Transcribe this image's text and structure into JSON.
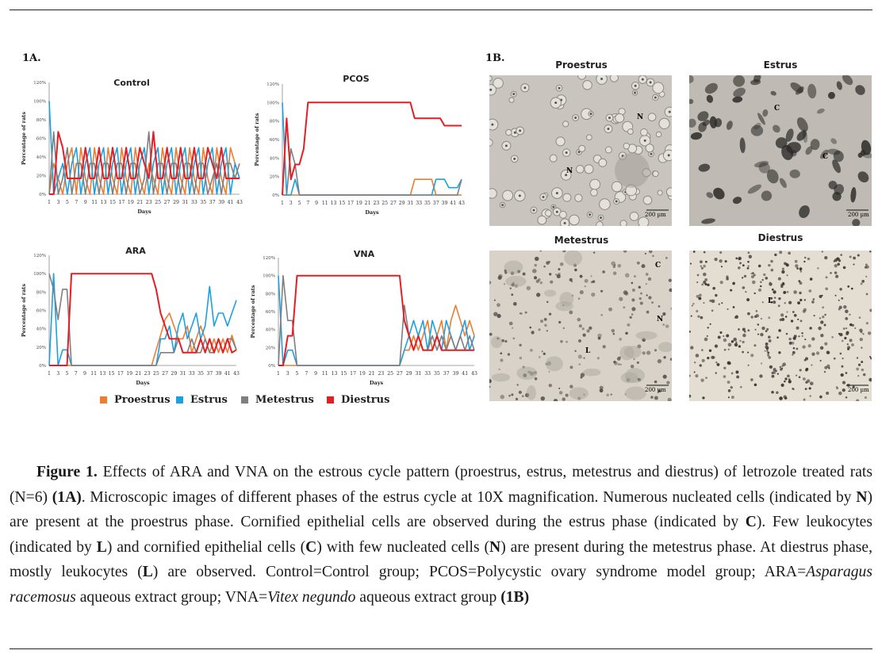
{
  "figure": {
    "panel_a_label": "1A.",
    "panel_b_label": "1B.",
    "caption": {
      "figure_label": "Figure 1.",
      "s1": " Effects of ARA and VNA on the estrous cycle pattern (proestrus, estrus, metestrus and diestrus) of letrozole treated rats (N=6) ",
      "ref_1a": "(1A)",
      "s2": ". Microscopic images of different phases of the estrus cycle at 10X magnification. Numerous nucleated cells (indicated by ",
      "n1": "N",
      "s3": ") are present at the proestrus phase. Cornified epithelial cells are observed during the estrus phase (indicated by ",
      "c1": "C",
      "s4": "). Few leukocytes (indicated by ",
      "l1": "L",
      "s5": ") and cornified epithelial cells (",
      "c2": "C",
      "s6": ") with few nucleated cells (",
      "n2": "N",
      "s7": ") are present during the metestrus phase. At diestrus phase, mostly leukocytes (",
      "l2": "L",
      "s8": ") are observed. Control=Control group; PCOS=Polycystic ovary syndrome model group; ARA=",
      "ara_species": "Asparagus racemosus",
      "s9": " aqueous extract group; VNA=",
      "vna_species": "Vitex negundo",
      "s10": " aqueous extract group ",
      "ref_1b": "(1B)"
    }
  },
  "legend": [
    {
      "name": "Proestrus",
      "color": "#ED7D31"
    },
    {
      "name": "Estrus",
      "color": "#1BA1E2"
    },
    {
      "name": "Metestrus",
      "color": "#7F7F7F"
    },
    {
      "name": "Diestrus",
      "color": "#E31E24"
    }
  ],
  "chart_data": [
    {
      "type": "line",
      "title": "Control",
      "xlabel": "Days",
      "ylabel": "Percentage of rats",
      "x_tick_labels": [
        "1",
        "3",
        "5",
        "7",
        "9",
        "11",
        "13",
        "15",
        "17",
        "19",
        "21",
        "23",
        "25",
        "27",
        "29",
        "31",
        "33",
        "35",
        "37",
        "39",
        "41",
        "43"
      ],
      "y_tick_labels": [
        "0%",
        "20%",
        "40%",
        "60%",
        "80%",
        "100%",
        "120%"
      ],
      "ylim": [
        0,
        120
      ],
      "days": [
        1,
        2,
        3,
        4,
        5,
        6,
        7,
        8,
        9,
        10,
        11,
        12,
        13,
        14,
        15,
        16,
        17,
        18,
        19,
        20,
        21,
        22,
        23,
        24,
        25,
        26,
        27,
        28,
        29,
        30,
        31,
        32,
        33,
        34,
        35,
        36,
        37,
        38,
        39,
        40,
        41,
        42,
        43
      ],
      "series": [
        {
          "name": "Proestrus",
          "values": [
            0,
            33,
            17,
            0,
            33,
            50,
            0,
            50,
            17,
            0,
            50,
            17,
            0,
            50,
            17,
            0,
            50,
            17,
            0,
            50,
            17,
            0,
            33,
            17,
            0,
            50,
            17,
            0,
            50,
            17,
            0,
            50,
            17,
            0,
            50,
            17,
            0,
            50,
            17,
            0,
            50,
            33,
            17
          ]
        },
        {
          "name": "Estrus",
          "values": [
            100,
            0,
            17,
            33,
            0,
            33,
            50,
            0,
            33,
            50,
            0,
            33,
            50,
            0,
            33,
            50,
            0,
            33,
            50,
            0,
            33,
            50,
            0,
            33,
            50,
            0,
            33,
            50,
            0,
            33,
            50,
            0,
            33,
            50,
            0,
            33,
            50,
            0,
            33,
            50,
            0,
            33,
            17
          ]
        },
        {
          "name": "Metestrus",
          "values": [
            0,
            67,
            0,
            17,
            50,
            0,
            33,
            33,
            0,
            33,
            33,
            0,
            33,
            33,
            0,
            33,
            33,
            0,
            33,
            33,
            0,
            17,
            67,
            0,
            33,
            33,
            0,
            33,
            33,
            0,
            33,
            33,
            0,
            33,
            33,
            0,
            17,
            33,
            0,
            33,
            33,
            17,
            33
          ]
        },
        {
          "name": "Diestrus",
          "values": [
            0,
            0,
            67,
            50,
            17,
            17,
            17,
            17,
            50,
            17,
            17,
            50,
            17,
            17,
            50,
            17,
            17,
            50,
            17,
            17,
            50,
            33,
            17,
            67,
            17,
            17,
            50,
            17,
            17,
            50,
            17,
            17,
            50,
            17,
            17,
            50,
            33,
            17,
            50,
            17,
            17,
            17,
            17
          ]
        }
      ]
    },
    {
      "type": "line",
      "title": "PCOS",
      "xlabel": "Days",
      "ylabel": "Percentage of rats",
      "x_tick_labels": [
        "1",
        "3",
        "5",
        "7",
        "9",
        "11",
        "13",
        "15",
        "17",
        "19",
        "21",
        "23",
        "25",
        "27",
        "29",
        "31",
        "33",
        "35",
        "37",
        "39",
        "41",
        "43"
      ],
      "y_tick_labels": [
        "0%",
        "20%",
        "40%",
        "60%",
        "80%",
        "100%",
        "120%"
      ],
      "ylim": [
        0,
        120
      ],
      "days": [
        1,
        2,
        3,
        4,
        5,
        6,
        7,
        8,
        9,
        10,
        11,
        12,
        13,
        14,
        15,
        16,
        17,
        18,
        19,
        20,
        21,
        22,
        23,
        24,
        25,
        26,
        27,
        28,
        29,
        30,
        31,
        32,
        33,
        34,
        35,
        36,
        37,
        38,
        39,
        40,
        41,
        42,
        43
      ],
      "series": [
        {
          "name": "Proestrus",
          "values": [
            0,
            0,
            0,
            0,
            0,
            0,
            0,
            0,
            0,
            0,
            0,
            0,
            0,
            0,
            0,
            0,
            0,
            0,
            0,
            0,
            0,
            0,
            0,
            0,
            0,
            0,
            0,
            0,
            0,
            0,
            0,
            17,
            17,
            17,
            17,
            17,
            0,
            0,
            0,
            0,
            0,
            0,
            0
          ]
        },
        {
          "name": "Estrus",
          "values": [
            100,
            0,
            0,
            17,
            0,
            0,
            0,
            0,
            0,
            0,
            0,
            0,
            0,
            0,
            0,
            0,
            0,
            0,
            0,
            0,
            0,
            0,
            0,
            0,
            0,
            0,
            0,
            0,
            0,
            0,
            0,
            0,
            0,
            0,
            0,
            0,
            17,
            17,
            17,
            8,
            8,
            8,
            17
          ]
        },
        {
          "name": "Metestrus",
          "values": [
            0,
            0,
            50,
            33,
            0,
            0,
            0,
            0,
            0,
            0,
            0,
            0,
            0,
            0,
            0,
            0,
            0,
            0,
            0,
            0,
            0,
            0,
            0,
            0,
            0,
            0,
            0,
            0,
            0,
            0,
            0,
            0,
            0,
            0,
            0,
            0,
            0,
            0,
            0,
            0,
            0,
            0,
            17
          ]
        },
        {
          "name": "Diestrus",
          "values": [
            0,
            83,
            17,
            33,
            33,
            50,
            100,
            100,
            100,
            100,
            100,
            100,
            100,
            100,
            100,
            100,
            100,
            100,
            100,
            100,
            100,
            100,
            100,
            100,
            100,
            100,
            100,
            100,
            100,
            100,
            100,
            83,
            83,
            83,
            83,
            83,
            83,
            83,
            75,
            75,
            75,
            75,
            75
          ]
        }
      ]
    },
    {
      "type": "line",
      "title": "ARA",
      "xlabel": "Days",
      "ylabel": "Percentage of rats",
      "x_tick_labels": [
        "1",
        "3",
        "5",
        "7",
        "9",
        "11",
        "13",
        "15",
        "17",
        "19",
        "21",
        "23",
        "25",
        "27",
        "29",
        "31",
        "33",
        "35",
        "37",
        "39",
        "41",
        "43"
      ],
      "y_tick_labels": [
        "0%",
        "20%",
        "40%",
        "60%",
        "80%",
        "100%",
        "120%"
      ],
      "ylim": [
        0,
        120
      ],
      "days": [
        1,
        2,
        3,
        4,
        5,
        6,
        7,
        8,
        9,
        10,
        11,
        12,
        13,
        14,
        15,
        16,
        17,
        18,
        19,
        20,
        21,
        22,
        23,
        24,
        25,
        26,
        27,
        28,
        29,
        30,
        31,
        32,
        33,
        34,
        35,
        36,
        37,
        38,
        39,
        40,
        41,
        42,
        43
      ],
      "series": [
        {
          "name": "Proestrus",
          "values": [
            0,
            0,
            0,
            0,
            0,
            0,
            0,
            0,
            0,
            0,
            0,
            0,
            0,
            0,
            0,
            0,
            0,
            0,
            0,
            0,
            0,
            0,
            0,
            0,
            17,
            33,
            50,
            57,
            43,
            29,
            29,
            43,
            14,
            29,
            43,
            29,
            14,
            29,
            14,
            29,
            14,
            33,
            17
          ]
        },
        {
          "name": "Estrus",
          "values": [
            0,
            100,
            0,
            17,
            17,
            0,
            0,
            0,
            0,
            0,
            0,
            0,
            0,
            0,
            0,
            0,
            0,
            0,
            0,
            0,
            0,
            0,
            0,
            0,
            0,
            29,
            29,
            43,
            14,
            43,
            57,
            29,
            43,
            57,
            29,
            43,
            86,
            43,
            57,
            57,
            43,
            57,
            71
          ]
        },
        {
          "name": "Metestrus",
          "values": [
            100,
            83,
            50,
            83,
            83,
            0,
            0,
            0,
            0,
            0,
            0,
            0,
            0,
            0,
            0,
            0,
            0,
            0,
            0,
            0,
            0,
            0,
            0,
            0,
            0,
            14,
            14,
            14,
            14,
            29,
            14,
            14,
            29,
            14,
            14,
            29,
            14,
            14,
            29,
            14,
            29,
            29,
            17
          ]
        },
        {
          "name": "Diestrus",
          "values": [
            0,
            0,
            0,
            0,
            0,
            100,
            100,
            100,
            100,
            100,
            100,
            100,
            100,
            100,
            100,
            100,
            100,
            100,
            100,
            100,
            100,
            100,
            100,
            100,
            83,
            57,
            43,
            29,
            29,
            29,
            14,
            14,
            14,
            14,
            29,
            14,
            29,
            14,
            29,
            14,
            29,
            14,
            17
          ]
        }
      ]
    },
    {
      "type": "line",
      "title": "VNA",
      "xlabel": "Days",
      "ylabel": "Percentage of rats",
      "x_tick_labels": [
        "1",
        "3",
        "5",
        "7",
        "9",
        "11",
        "13",
        "15",
        "17",
        "19",
        "21",
        "23",
        "25",
        "27",
        "29",
        "31",
        "33",
        "35",
        "37",
        "39",
        "41",
        "43"
      ],
      "y_tick_labels": [
        "0%",
        "20%",
        "40%",
        "60%",
        "80%",
        "100%",
        "120%"
      ],
      "ylim": [
        0,
        120
      ],
      "days": [
        1,
        2,
        3,
        4,
        5,
        6,
        7,
        8,
        9,
        10,
        11,
        12,
        13,
        14,
        15,
        16,
        17,
        18,
        19,
        20,
        21,
        22,
        23,
        24,
        25,
        26,
        27,
        28,
        29,
        30,
        31,
        32,
        33,
        34,
        35,
        36,
        37,
        38,
        39,
        40,
        41,
        42,
        43
      ],
      "series": [
        {
          "name": "Proestrus",
          "values": [
            0,
            0,
            0,
            0,
            0,
            0,
            0,
            0,
            0,
            0,
            0,
            0,
            0,
            0,
            0,
            0,
            0,
            0,
            0,
            0,
            0,
            0,
            0,
            0,
            0,
            0,
            0,
            17,
            17,
            33,
            17,
            33,
            50,
            17,
            33,
            50,
            17,
            50,
            67,
            50,
            33,
            50,
            33
          ]
        },
        {
          "name": "Estrus",
          "values": [
            100,
            0,
            17,
            17,
            0,
            0,
            0,
            0,
            0,
            0,
            0,
            0,
            0,
            0,
            0,
            0,
            0,
            0,
            0,
            0,
            0,
            0,
            0,
            0,
            0,
            0,
            0,
            17,
            33,
            50,
            33,
            50,
            17,
            50,
            33,
            17,
            50,
            33,
            17,
            33,
            50,
            17,
            33
          ]
        },
        {
          "name": "Metestrus",
          "values": [
            0,
            100,
            50,
            50,
            0,
            0,
            0,
            0,
            0,
            0,
            0,
            0,
            0,
            0,
            0,
            0,
            0,
            0,
            0,
            0,
            0,
            0,
            0,
            0,
            0,
            0,
            0,
            67,
            33,
            17,
            33,
            17,
            17,
            33,
            17,
            33,
            17,
            33,
            17,
            33,
            17,
            33,
            17
          ]
        },
        {
          "name": "Diestrus",
          "values": [
            0,
            0,
            33,
            33,
            100,
            100,
            100,
            100,
            100,
            100,
            100,
            100,
            100,
            100,
            100,
            100,
            100,
            100,
            100,
            100,
            100,
            100,
            100,
            100,
            100,
            100,
            100,
            50,
            33,
            17,
            33,
            17,
            17,
            17,
            33,
            17,
            17,
            17,
            17,
            17,
            17,
            17,
            17
          ]
        }
      ]
    }
  ],
  "micrographs": [
    {
      "title": "Proestrus",
      "scale": "200 µm",
      "labels": [
        "N",
        "N"
      ]
    },
    {
      "title": "Estrus",
      "scale": "200 µm",
      "labels": [
        "C",
        "C"
      ]
    },
    {
      "title": "Metestrus",
      "scale": "200 µm",
      "labels": [
        "C",
        "N",
        "L"
      ]
    },
    {
      "title": "Diestrus",
      "scale": "200 µm",
      "labels": [
        "L"
      ]
    }
  ]
}
